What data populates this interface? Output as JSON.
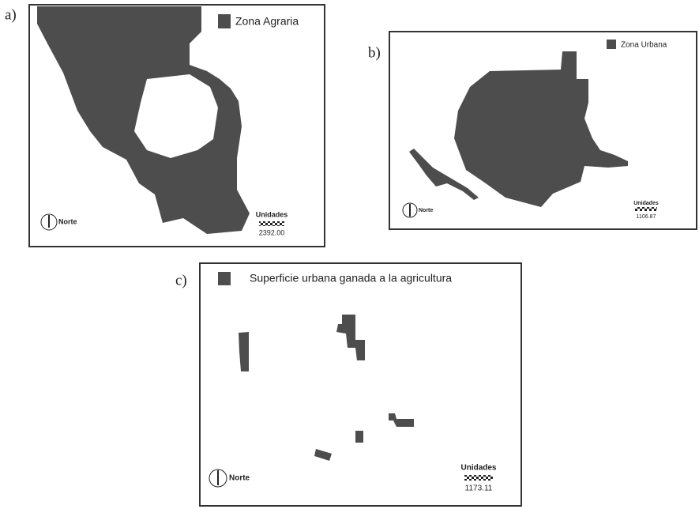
{
  "panels": [
    {
      "label": "a)",
      "legend": "Zona Agraria",
      "north": "Norte",
      "scale_title": "Unidades",
      "scale_value": "2392.00"
    },
    {
      "label": "b)",
      "legend": "Zona Urbana",
      "north": "Norte",
      "scale_title": "Unidades",
      "scale_value": "1106.87"
    },
    {
      "label": "c)",
      "legend": "Superficie urbana ganada a la agricultura",
      "north": "Norte",
      "scale_title": "Unidades",
      "scale_value": "1173.11"
    }
  ]
}
